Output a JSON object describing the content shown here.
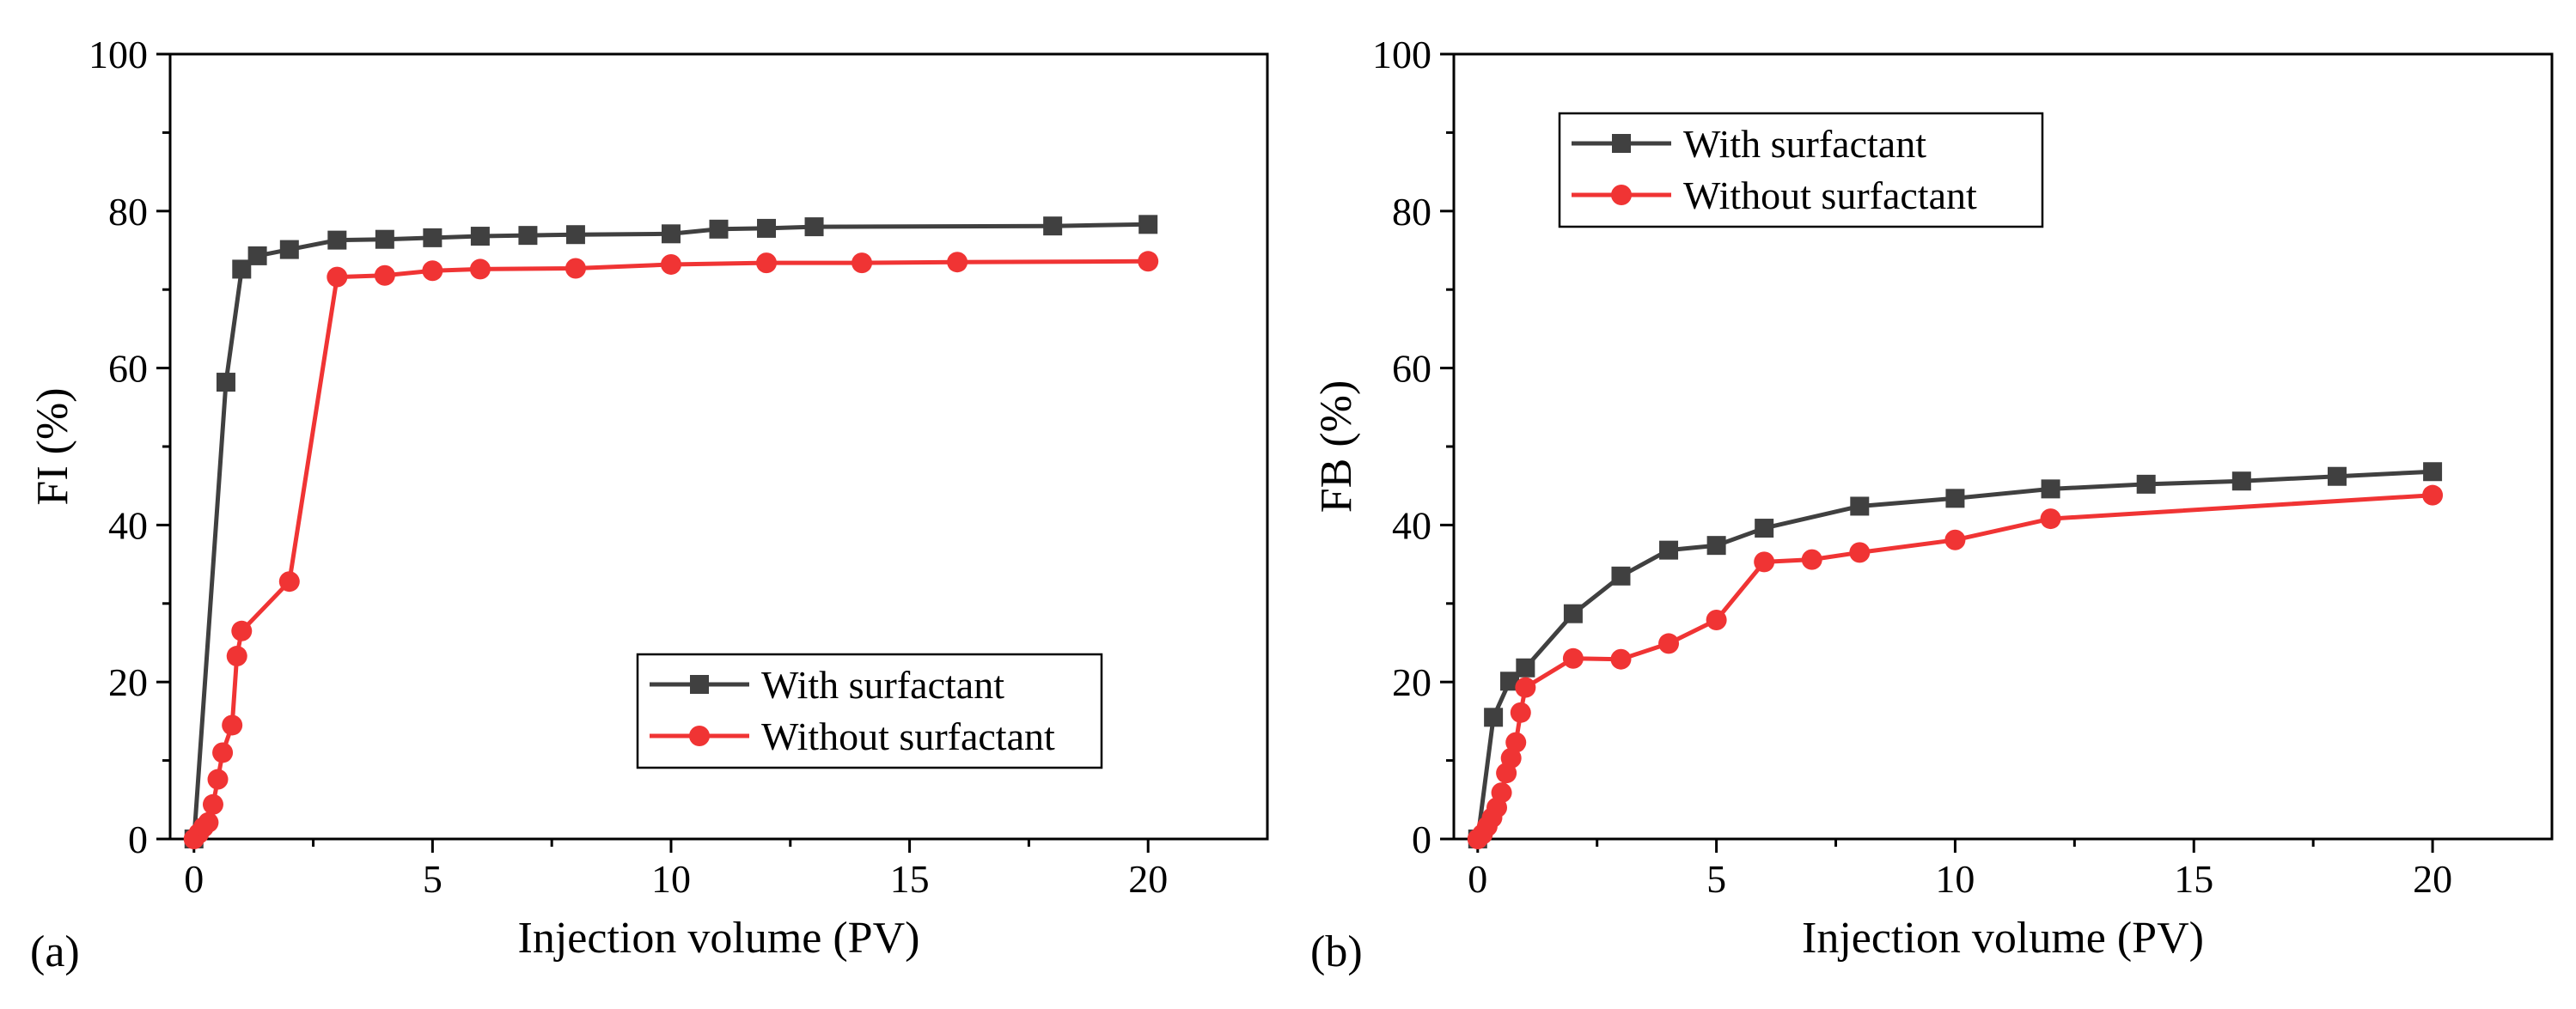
{
  "colors": {
    "with": "#404040",
    "without": "#f03434",
    "axis": "#000000"
  },
  "chart_data": [
    {
      "type": "line",
      "panel_label": "(a)",
      "xlabel": "Injection volume (PV)",
      "ylabel": "FI (%)",
      "xlim": [
        -0.5,
        22.5
      ],
      "ylim": [
        0,
        100
      ],
      "xticks": [
        0,
        5,
        10,
        15,
        20
      ],
      "yticks": [
        0,
        20,
        40,
        60,
        80,
        100
      ],
      "xtick_labels": [
        "0",
        "5",
        "10",
        "15",
        "20"
      ],
      "ytick_labels": [
        "0",
        "20",
        "40",
        "60",
        "80",
        "100"
      ],
      "legend_position": "bottom-right",
      "grid": false,
      "series": [
        {
          "name": "With surfactant",
          "marker": "square",
          "x": [
            0,
            0.67,
            1,
            1.33,
            2,
            3,
            4,
            5,
            6,
            7,
            8,
            10,
            11,
            12,
            13,
            18,
            20
          ],
          "y": [
            0,
            58.2,
            72.6,
            74.3,
            75.1,
            76.3,
            76.4,
            76.6,
            76.8,
            76.9,
            77.0,
            77.1,
            77.7,
            77.8,
            78.0,
            78.1,
            78.3
          ]
        },
        {
          "name": "Without surfactant",
          "marker": "circle",
          "x": [
            0,
            0.1,
            0.2,
            0.3,
            0.4,
            0.5,
            0.6,
            0.8,
            0.9,
            1,
            2,
            3,
            4,
            5,
            6,
            8,
            10,
            12,
            14,
            16,
            20
          ],
          "y": [
            0,
            0.7,
            1.5,
            2.1,
            4.4,
            7.6,
            11.0,
            14.5,
            23.3,
            26.5,
            32.8,
            71.6,
            71.8,
            72.4,
            72.6,
            72.7,
            73.2,
            73.4,
            73.4,
            73.5,
            73.6
          ]
        }
      ]
    },
    {
      "type": "line",
      "panel_label": "(b)",
      "xlabel": "Injection volume (PV)",
      "ylabel": "FB (%)",
      "xlim": [
        -0.5,
        22.5
      ],
      "ylim": [
        0,
        100
      ],
      "xticks": [
        0,
        5,
        10,
        15,
        20
      ],
      "yticks": [
        0,
        20,
        40,
        60,
        80,
        100
      ],
      "xtick_labels": [
        "0",
        "5",
        "10",
        "15",
        "20"
      ],
      "ytick_labels": [
        "0",
        "20",
        "40",
        "60",
        "80",
        "100"
      ],
      "legend_position": "top-left",
      "grid": false,
      "series": [
        {
          "name": "With surfactant",
          "marker": "square",
          "x": [
            0,
            0.33,
            0.67,
            1,
            2,
            3,
            4,
            5,
            6,
            8,
            10,
            12,
            14,
            16,
            18,
            20
          ],
          "y": [
            0,
            15.5,
            20.1,
            21.8,
            28.7,
            33.5,
            36.8,
            37.4,
            39.6,
            42.4,
            43.4,
            44.6,
            45.2,
            45.6,
            46.2,
            46.8
          ]
        },
        {
          "name": "Without surfactant",
          "marker": "circle",
          "x": [
            0,
            0.1,
            0.2,
            0.3,
            0.4,
            0.5,
            0.6,
            0.7,
            0.8,
            0.9,
            1,
            2,
            3,
            4,
            5,
            6,
            7,
            8,
            10,
            12,
            20
          ],
          "y": [
            0,
            0.6,
            1.6,
            2.7,
            4.0,
            5.9,
            8.4,
            10.3,
            12.3,
            16.1,
            19.3,
            23.0,
            22.9,
            24.9,
            27.9,
            35.3,
            35.6,
            36.5,
            38.1,
            40.8,
            43.8
          ]
        }
      ]
    }
  ]
}
